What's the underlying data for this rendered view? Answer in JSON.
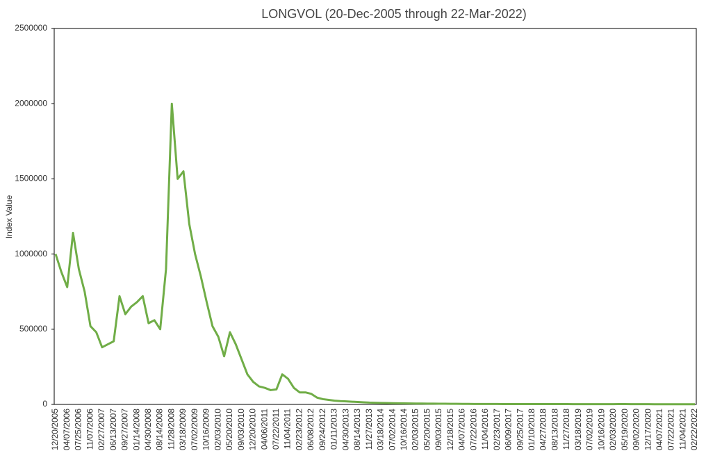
{
  "chart_data": {
    "type": "line",
    "title": "LONGVOL (20-Dec-2005 through 22-Mar-2022)",
    "y_label": "Index Value",
    "categories": [
      "12/20/2005",
      null,
      "04/07/2006",
      null,
      "07/25/2006",
      null,
      "11/07/2006",
      null,
      "02/27/2007",
      null,
      "06/13/2007",
      null,
      "09/27/2007",
      null,
      "01/14/2008",
      null,
      "04/30/2008",
      null,
      "08/14/2008",
      null,
      "11/28/2008",
      null,
      "03/18/2009",
      null,
      "07/02/2009",
      null,
      "10/16/2009",
      null,
      "02/03/2010",
      null,
      "05/20/2010",
      null,
      "09/03/2010",
      null,
      "12/20/2010",
      null,
      "04/06/2011",
      null,
      "07/22/2011",
      null,
      "11/04/2011",
      null,
      "02/23/2012",
      null,
      "06/08/2012",
      null,
      "09/24/2012",
      null,
      "01/11/2013",
      null,
      "04/30/2013",
      null,
      "08/14/2013",
      null,
      "11/27/2013",
      null,
      "03/18/2014",
      null,
      "07/02/2014",
      null,
      "10/16/2014",
      null,
      "02/03/2015",
      null,
      "05/20/2015",
      null,
      "09/03/2015",
      null,
      "12/18/2015",
      null,
      "04/07/2016",
      null,
      "07/22/2016",
      null,
      "11/04/2016",
      null,
      "02/23/2017",
      null,
      "06/09/2017",
      null,
      "09/25/2017",
      null,
      "01/10/2018",
      null,
      "04/27/2018",
      null,
      "08/13/2018",
      null,
      "11/27/2018",
      null,
      "03/18/2019",
      null,
      "07/02/2019",
      null,
      "10/16/2019",
      null,
      "02/03/2020",
      null,
      "05/19/2020",
      null,
      "09/02/2020",
      null,
      "12/17/2020",
      null,
      "04/07/2021",
      null,
      "07/22/2021",
      null,
      "11/04/2021",
      null,
      "02/22/2022"
    ],
    "values": [
      1000000,
      880000,
      780000,
      1140000,
      900000,
      750000,
      520000,
      480000,
      380000,
      400000,
      420000,
      720000,
      600000,
      650000,
      680000,
      720000,
      540000,
      560000,
      500000,
      900000,
      2000000,
      1500000,
      1550000,
      1200000,
      1000000,
      850000,
      680000,
      520000,
      450000,
      320000,
      480000,
      400000,
      300000,
      200000,
      150000,
      120000,
      110000,
      95000,
      100000,
      200000,
      170000,
      110000,
      80000,
      80000,
      70000,
      45000,
      35000,
      30000,
      25000,
      22000,
      20000,
      18000,
      16000,
      14000,
      12000,
      11000,
      10000,
      9000,
      8000,
      7500,
      7000,
      6500,
      6000,
      5500,
      5000,
      5000,
      4500,
      4500,
      4000,
      4000,
      3500,
      3500,
      3000,
      3000,
      3000,
      2800,
      2800,
      2600,
      2600,
      2500,
      2500,
      2400,
      2400,
      2300,
      2300,
      2200,
      2200,
      2100,
      2100,
      2000,
      2000,
      2000,
      1900,
      1900,
      1800,
      1800,
      1800,
      2500,
      2500,
      2000,
      1800,
      1600,
      1500,
      1400,
      1300,
      1200,
      1200,
      1100,
      1100,
      1000,
      1000
    ],
    "color": "#70ad47",
    "ylim": [
      0,
      2500000
    ],
    "yticks": [
      0,
      500000,
      1000000,
      1500000,
      2000000,
      2500000
    ]
  }
}
